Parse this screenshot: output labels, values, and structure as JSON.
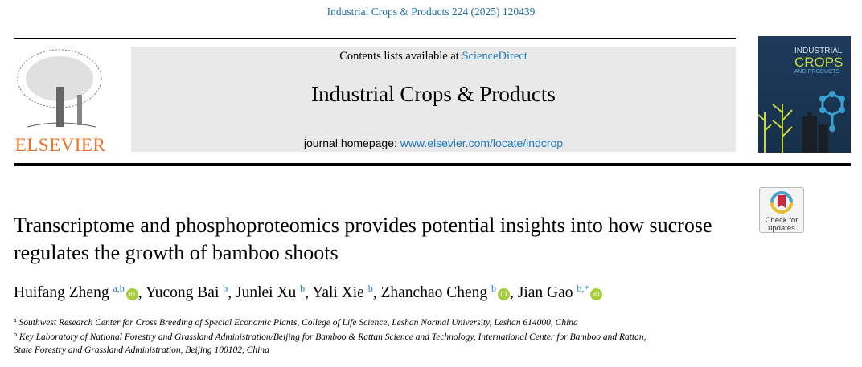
{
  "citation": "Industrial Crops & Products 224 (2025) 120439",
  "header": {
    "contents_prefix": "Contents lists available at ",
    "contents_link": "ScienceDirect",
    "journal_title": "Industrial Crops & Products",
    "homepage_prefix": "journal homepage: ",
    "homepage_link": "www.elsevier.com/locate/indcrop",
    "publisher_logo": "ELSEVIER",
    "cover_lines": [
      "INDUSTRIAL",
      "CROPS",
      "AND PRODUCTS"
    ]
  },
  "crossmark": {
    "line1": "Check for",
    "line2": "updates"
  },
  "article": {
    "title": "Transcriptome and phosphoproteomics provides potential insights into how sucrose regulates the growth of bamboo shoots",
    "authors": [
      {
        "name": "Huifang Zheng",
        "sup": "a,b",
        "orcid": true
      },
      {
        "name": "Yucong Bai",
        "sup": "b",
        "orcid": false
      },
      {
        "name": "Junlei Xu",
        "sup": "b",
        "orcid": false
      },
      {
        "name": "Yali Xie",
        "sup": "b",
        "orcid": false
      },
      {
        "name": "Zhanchao Cheng",
        "sup": "b",
        "orcid": true
      },
      {
        "name": "Jian Gao",
        "sup": "b,*",
        "orcid": true
      }
    ],
    "affiliations": [
      {
        "mark": "a",
        "text": "Southwest Research Center for Cross Breeding of Special Economic Plants, College of Life Science, Leshan Normal University, Leshan 614000, China"
      },
      {
        "mark": "b",
        "text": "Key Laboratory of National Forestry and Grassland Administration/Beijing for Bamboo & Rattan Science and Technology, International Center for Bamboo and Rattan,"
      },
      {
        "mark": "",
        "text": "State Forestry and Grassland Administration, Beijing 100102, China"
      }
    ]
  },
  "colors": {
    "link": "#1f7bbf",
    "elsevier": "#e8702a",
    "orcid": "#a6ce39",
    "banner": "#e9e9e9"
  }
}
